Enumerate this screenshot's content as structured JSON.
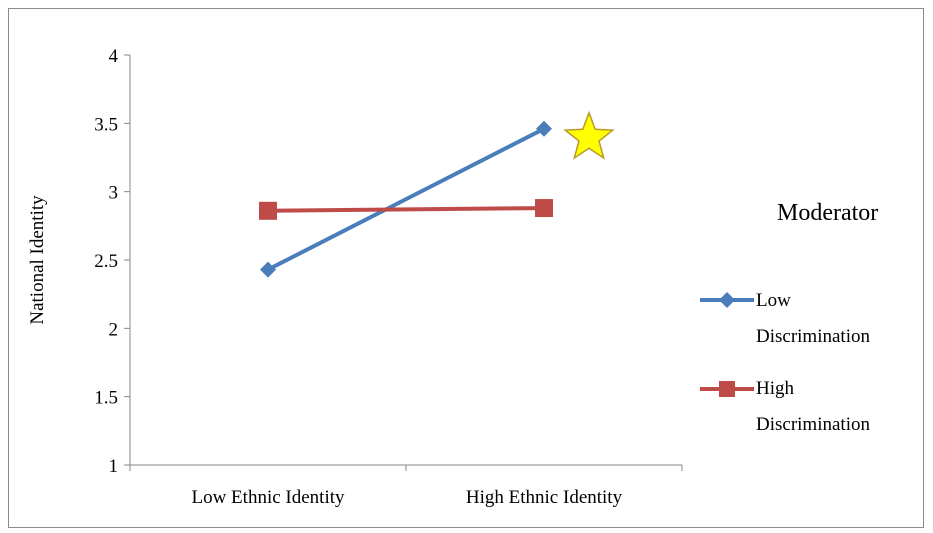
{
  "chart_data": {
    "type": "line",
    "title": "",
    "xlabel": "",
    "ylabel": "National Identity",
    "categories": [
      "Low Ethnic Identity",
      "High Ethnic Identity"
    ],
    "ylim": [
      1,
      4
    ],
    "yticks": [
      "1",
      "1.5",
      "2",
      "2.5",
      "3",
      "3.5",
      "4"
    ],
    "grid": false,
    "legend_title": "Moderator",
    "legend_position": "right",
    "series": [
      {
        "name_line1": "Low",
        "name_line2": "Discrimination",
        "name": "Low Discrimination",
        "values": [
          2.43,
          3.46
        ],
        "color": "#4a7ebb",
        "marker": "diamond"
      },
      {
        "name_line1": "High",
        "name_line2": "Discrimination",
        "name": "High Discrimination",
        "values": [
          2.86,
          2.88
        ],
        "color": "#be4b48",
        "marker": "square"
      }
    ],
    "annotation": {
      "shape": "star",
      "color": "#ffff00",
      "stroke": "#b89b2a",
      "series_index": 0,
      "point_index": 1
    }
  }
}
